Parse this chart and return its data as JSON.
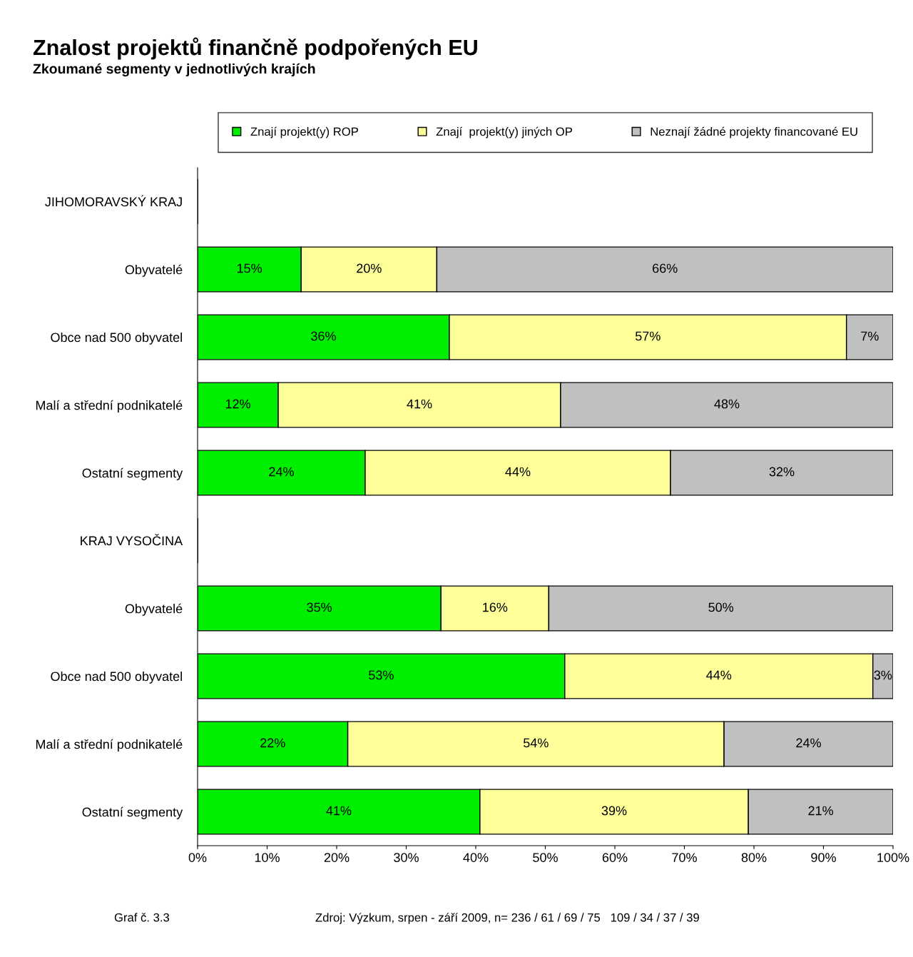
{
  "chart_data": {
    "type": "bar",
    "orientation": "horizontal",
    "stacked": true,
    "title": "Znalost projektů finančně podpořených EU",
    "subtitle": "Zkoumané segmenty v jednotlivých krajích",
    "categories": [
      "JIHOMORAVSKÝ KRAJ",
      "Obyvatelé",
      "Obce nad 500 obyvatel",
      "Malí a střední podnikatelé",
      "Ostatní segmenty",
      "KRAJ VYSOČINA",
      "Obyvatelé",
      "Obce nad 500 obyvatel",
      "Malí a střední podnikatelé",
      "Ostatní segmenty"
    ],
    "series": [
      {
        "name": "Znají projekt(y) ROP",
        "color": "#00ee00",
        "values": [
          null,
          14.9,
          36.2,
          11.6,
          24.1,
          null,
          35.0,
          52.8,
          21.6,
          40.6
        ],
        "value_labels": [
          null,
          "15%",
          "36%",
          "12%",
          "24%",
          null,
          "35%",
          "53%",
          "22%",
          "41%"
        ]
      },
      {
        "name": "Znají  projekt(y) jiných OP",
        "color": "#ffff99",
        "values": [
          null,
          19.5,
          57.1,
          40.6,
          43.9,
          null,
          15.5,
          44.3,
          54.1,
          38.6
        ],
        "value_labels": [
          null,
          "20%",
          "57%",
          "41%",
          "44%",
          null,
          "16%",
          "44%",
          "54%",
          "39%"
        ]
      },
      {
        "name": "Neznají žádné projekty financované EU",
        "color": "#c0c0c0",
        "values": [
          null,
          65.6,
          6.7,
          47.8,
          32.0,
          null,
          49.5,
          2.9,
          24.3,
          20.8
        ],
        "value_labels": [
          null,
          "66%",
          "7%",
          "48%",
          "32%",
          null,
          "50%",
          "3%",
          "24%",
          "21%"
        ]
      }
    ],
    "xlim": [
      0,
      100
    ],
    "xticks": [
      {
        "value": 0,
        "label": "0%"
      },
      {
        "value": 10,
        "label": "10%"
      },
      {
        "value": 20,
        "label": "20%"
      },
      {
        "value": 30,
        "label": "30%"
      },
      {
        "value": 40,
        "label": "40%"
      },
      {
        "value": 50,
        "label": "50%"
      },
      {
        "value": 60,
        "label": "60%"
      },
      {
        "value": 70,
        "label": "70%"
      },
      {
        "value": 80,
        "label": "80%"
      },
      {
        "value": 90,
        "label": "90%"
      },
      {
        "value": 100,
        "label": "100%"
      }
    ],
    "legend": "top",
    "grid": false,
    "annotations": [
      "Graf č. 3.3",
      "Zdroj: Výzkum, srpen - září 2009, n= 236 / 61 / 69 / 75   109 / 34 / 37 / 39"
    ]
  }
}
